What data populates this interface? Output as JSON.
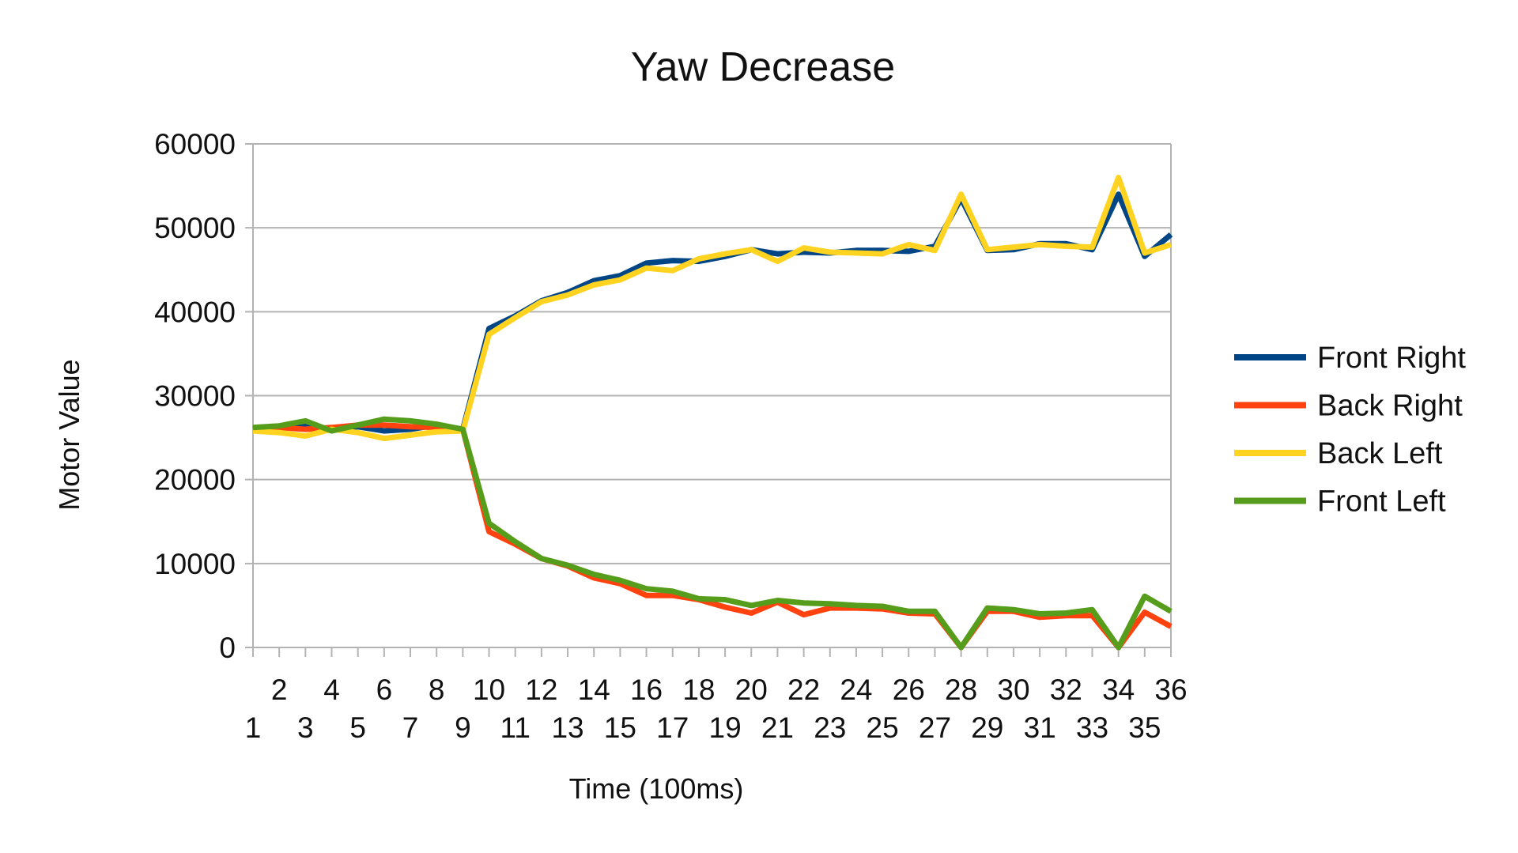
{
  "chart_data": {
    "type": "line",
    "title": "Yaw Decrease",
    "xlabel": "Time (100ms)",
    "ylabel": "Motor Value",
    "ylim": [
      0,
      60000
    ],
    "yticks": [
      0,
      10000,
      20000,
      30000,
      40000,
      50000,
      60000
    ],
    "x": [
      1,
      2,
      3,
      4,
      5,
      6,
      7,
      8,
      9,
      10,
      11,
      12,
      13,
      14,
      15,
      16,
      17,
      18,
      19,
      20,
      21,
      22,
      23,
      24,
      25,
      26,
      27,
      28,
      29,
      30,
      31,
      32,
      33,
      34,
      35,
      36
    ],
    "grid": true,
    "legend": "right",
    "series": [
      {
        "name": "Front Right",
        "color": "#004586",
        "values": [
          26000,
          26200,
          26500,
          26000,
          26300,
          25800,
          26000,
          26500,
          26000,
          38000,
          39500,
          41300,
          42300,
          43700,
          44300,
          45800,
          46100,
          46000,
          46600,
          47400,
          46900,
          47100,
          47000,
          47300,
          47300,
          47200,
          47800,
          53500,
          47300,
          47400,
          48100,
          48100,
          47400,
          54000,
          46600,
          49200
        ]
      },
      {
        "name": "Back Right",
        "color": "#ff420e",
        "values": [
          26000,
          26200,
          26000,
          26200,
          26500,
          26500,
          26300,
          26200,
          26000,
          13800,
          12300,
          10600,
          9700,
          8300,
          7600,
          6200,
          6200,
          5700,
          4800,
          4100,
          5400,
          3900,
          4700,
          4700,
          4600,
          4100,
          4000,
          0,
          4300,
          4300,
          3600,
          3800,
          3800,
          0,
          4200,
          2500
        ]
      },
      {
        "name": "Back Left",
        "color": "#ffd320",
        "values": [
          25800,
          25600,
          25200,
          26000,
          25600,
          24900,
          25300,
          25700,
          25800,
          37300,
          39300,
          41200,
          42000,
          43200,
          43800,
          45200,
          44900,
          46300,
          46900,
          47400,
          46000,
          47600,
          47100,
          47000,
          46900,
          48000,
          47300,
          54000,
          47400,
          47700,
          48000,
          47800,
          47700,
          56000,
          47000,
          48000
        ]
      },
      {
        "name": "Front Left",
        "color": "#579d1c",
        "values": [
          26200,
          26400,
          27000,
          25800,
          26500,
          27200,
          27000,
          26600,
          26000,
          14800,
          12600,
          10600,
          9800,
          8700,
          8000,
          7000,
          6700,
          5800,
          5700,
          5000,
          5600,
          5300,
          5200,
          5000,
          4900,
          4300,
          4300,
          0,
          4700,
          4500,
          4000,
          4100,
          4500,
          0,
          6100,
          4300
        ]
      }
    ]
  }
}
